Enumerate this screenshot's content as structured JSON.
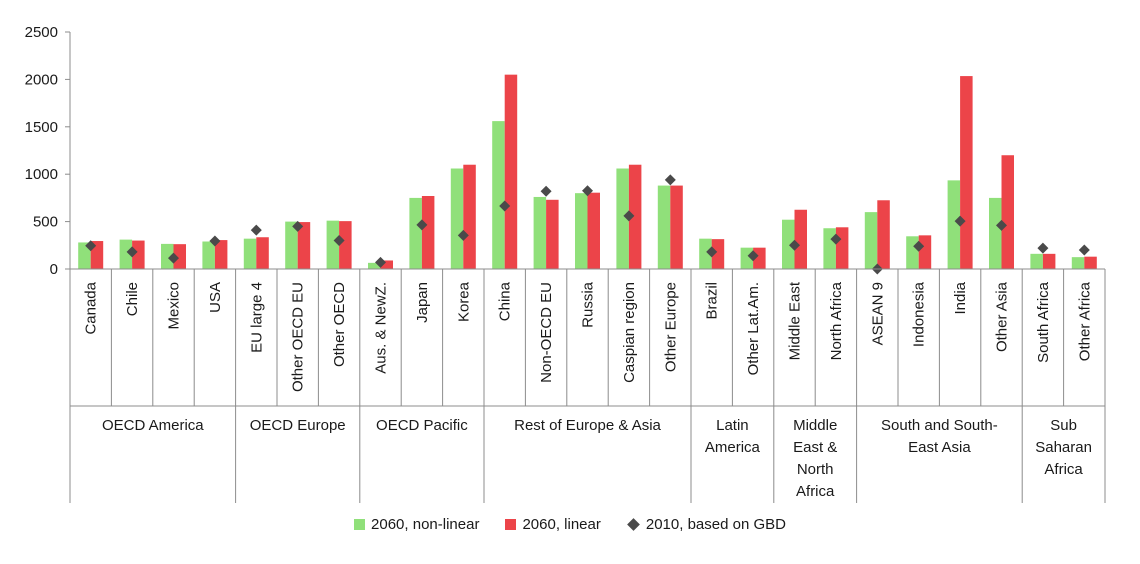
{
  "chart_data": {
    "type": "bar",
    "title": "",
    "xlabel": "",
    "ylabel": "",
    "ylim": [
      0,
      2500
    ],
    "yticks": [
      "0",
      "500",
      "1000",
      "1500",
      "2000",
      "2500"
    ],
    "grid": false,
    "legend_position": "bottom",
    "categories": [
      "Canada",
      "Chile",
      "Mexico",
      "USA",
      "EU large 4",
      "Other OECD EU",
      "Other OECD",
      "Aus. & NewZ.",
      "Japan",
      "Korea",
      "China",
      "Non-OECD EU",
      "Russia",
      "Caspian region",
      "Other Europe",
      "Brazil",
      "Other Lat.Am.",
      "Middle East",
      "North Africa",
      "ASEAN 9",
      "Indonesia",
      "India",
      "Other Asia",
      "South Africa",
      "Other Africa"
    ],
    "groups": [
      {
        "label_lines": [
          "OECD America"
        ],
        "count": 4
      },
      {
        "label_lines": [
          "OECD Europe"
        ],
        "count": 3
      },
      {
        "label_lines": [
          "OECD Pacific"
        ],
        "count": 3
      },
      {
        "label_lines": [
          "Rest of Europe & Asia"
        ],
        "count": 5
      },
      {
        "label_lines": [
          "Latin",
          "America"
        ],
        "count": 2
      },
      {
        "label_lines": [
          "Middle",
          "East &",
          "North",
          "Africa"
        ],
        "count": 2
      },
      {
        "label_lines": [
          "South and South-",
          "East Asia"
        ],
        "count": 4
      },
      {
        "label_lines": [
          "Sub",
          "Saharan",
          "Africa"
        ],
        "count": 2
      }
    ],
    "series": [
      {
        "name": "2060, non-linear",
        "kind": "bar",
        "color": "#90e07a",
        "values": [
          280,
          310,
          265,
          290,
          320,
          500,
          510,
          65,
          750,
          1060,
          1560,
          760,
          800,
          1060,
          880,
          320,
          225,
          520,
          430,
          600,
          345,
          935,
          750,
          160,
          125
        ]
      },
      {
        "name": "2060, linear",
        "kind": "bar",
        "color": "#ec4449",
        "values": [
          295,
          300,
          262,
          305,
          335,
          495,
          505,
          90,
          770,
          1100,
          2050,
          730,
          805,
          1100,
          880,
          315,
          225,
          625,
          440,
          725,
          355,
          2035,
          1200,
          160,
          130
        ]
      },
      {
        "name": "2010, based on GBD",
        "kind": "marker",
        "color": "#4a4a4a",
        "values": [
          245,
          180,
          115,
          295,
          410,
          450,
          300,
          70,
          465,
          355,
          665,
          820,
          825,
          560,
          940,
          180,
          140,
          250,
          315,
          0,
          240,
          505,
          460,
          220,
          200
        ]
      }
    ]
  }
}
